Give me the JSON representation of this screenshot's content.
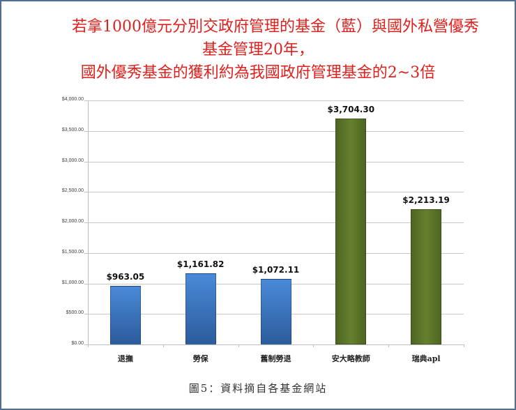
{
  "title": {
    "line1": "若拿1000億元分別交政府管理的基金（藍）與國外私營優秀",
    "line2": "基金管理20年，",
    "line3": "國外優秀基金的獲利約為我國政府管理基金的2~3倍",
    "color": "#e0201c"
  },
  "caption": "圖5：資料摘自各基金網站",
  "y_ticks": [
    "$4,000.00",
    "$3,500.00",
    "$3,000.00",
    "$2,500.00",
    "$2,000.00",
    "$1,500.00",
    "$1,000.00",
    "$500.00",
    "$0.00"
  ],
  "bars": [
    {
      "label": "退撫",
      "value_label": "$963.05",
      "color": "blue"
    },
    {
      "label": "勞保",
      "value_label": "$1,161.82",
      "color": "blue"
    },
    {
      "label": "舊制勞退",
      "value_label": "$1,072.11",
      "color": "blue"
    },
    {
      "label": "安大略教師",
      "value_label": "$3,704.30",
      "color": "green"
    },
    {
      "label": "瑞典apl",
      "value_label": "$2,213.19",
      "color": "green"
    }
  ],
  "chart_data": {
    "type": "bar",
    "title": "若拿1000億元分別交政府管理的基金（藍）與國外私營優秀基金管理20年，國外優秀基金的獲利約為我國政府管理基金的2~3倍",
    "categories": [
      "退撫",
      "勞保",
      "舊制勞退",
      "安大略教師",
      "瑞典apl"
    ],
    "values": [
      963.05,
      1161.82,
      1072.11,
      3704.3,
      2213.19
    ],
    "colors": [
      "#3b78c4",
      "#3b78c4",
      "#3b78c4",
      "#5a7528",
      "#5a7528"
    ],
    "xlabel": "",
    "ylabel": "",
    "ylim": [
      0,
      4000
    ],
    "ytick_step": 500,
    "grid": true,
    "legend": "none",
    "data_labels": true,
    "caption": "圖5：資料摘自各基金網站"
  }
}
